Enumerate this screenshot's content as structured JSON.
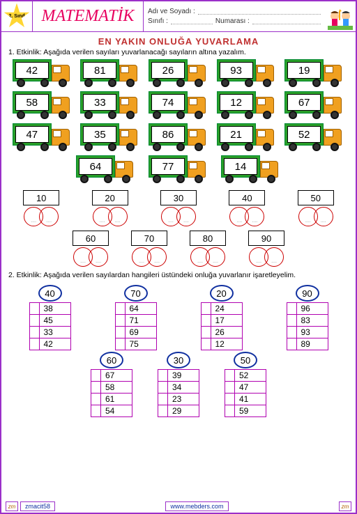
{
  "header": {
    "grade": "2. Sınıf",
    "subject": "MATEMATİK",
    "name_label": "Adı ve Soyadı :",
    "class_label": "Sınıfı :",
    "number_label": "Numarası :"
  },
  "title": "EN  YAKIN  ONLUĞA YUVARLAMA",
  "activity1": {
    "instruction": "1.  Etkinlik: Aşağıda verilen  sayıları yuvarlanacağı sayıların altına yazalım.",
    "truck_rows": [
      [
        42,
        81,
        26,
        93,
        19
      ],
      [
        58,
        33,
        74,
        12,
        67
      ],
      [
        47,
        35,
        86,
        21,
        52
      ]
    ],
    "truck_row_short": [
      64,
      77,
      14
    ],
    "answers_row1": [
      10,
      20,
      30,
      40,
      50
    ],
    "answers_row2": [
      60,
      70,
      80,
      90
    ],
    "dots": "....",
    "colors": {
      "truck_body": "#2aa02a",
      "truck_cab": "#f0a020",
      "circle_border": "#c00000"
    }
  },
  "activity2": {
    "instruction": "2.  Etkinlik: Aşağıda verilen  sayılardan hangileri üstündeki onluğa  yuvarlanır işaretleyelim.",
    "row1": [
      {
        "head": 40,
        "cells": [
          38,
          45,
          33,
          42
        ]
      },
      {
        "head": 70,
        "cells": [
          64,
          71,
          69,
          75
        ]
      },
      {
        "head": 20,
        "cells": [
          24,
          17,
          26,
          12
        ]
      },
      {
        "head": 90,
        "cells": [
          96,
          83,
          93,
          89
        ]
      }
    ],
    "row2": [
      {
        "head": 60,
        "cells": [
          67,
          58,
          61,
          54
        ]
      },
      {
        "head": 30,
        "cells": [
          39,
          34,
          23,
          29
        ]
      },
      {
        "head": 50,
        "cells": [
          52,
          47,
          41,
          59
        ]
      }
    ],
    "colors": {
      "head_border": "#1030a0",
      "cell_border": "#b000b0"
    }
  },
  "footer": {
    "left_mark": "zm",
    "author": "zmacit58",
    "site": "www.mebders.com",
    "right_mark": "zm"
  }
}
